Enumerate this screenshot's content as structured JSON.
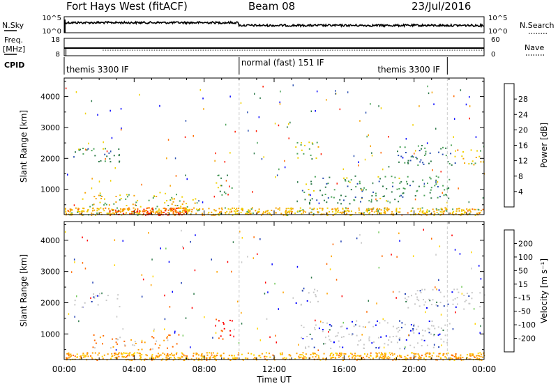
{
  "header": {
    "title": "Fort Hays West (fitACF)",
    "beam": "Beam 08",
    "date": "23/Jul/2016"
  },
  "colors": {
    "power_scale": [
      "#0000ff",
      "#2a4fb0",
      "#2e7a4a",
      "#4ca35a",
      "#f0d000",
      "#f5a200",
      "#ff6a00",
      "#ff1a00"
    ],
    "velocity_scale": [
      "#ff0000",
      "#ff6a00",
      "#ffa300",
      "#ffd400",
      "#c8c8c8",
      "#73c85a",
      "#2e7a4a",
      "#1a3ab0",
      "#0000ff"
    ]
  },
  "chart_data": [
    {
      "type": "line",
      "name": "noise-panel",
      "left_label": "N.Sky",
      "right_label": "N.Search",
      "y_left_ticks": [
        "10^5",
        "10^0"
      ],
      "y_right_ticks": [
        "10^5",
        "10^0"
      ],
      "xlim": [
        0,
        24
      ]
    },
    {
      "type": "line",
      "name": "freq-nave-panel",
      "left_label_1": "Freq.",
      "left_label_2": "[MHz]",
      "right_label": "Nave",
      "y_left_ticks": [
        18,
        8
      ],
      "y_right_ticks": [
        60,
        0
      ],
      "xlim": [
        0,
        24
      ]
    },
    {
      "type": "table",
      "name": "cpid-panel",
      "label": "CPID",
      "segments": [
        {
          "start": 0.0,
          "end": 10.0,
          "text": "themis 3300 IF"
        },
        {
          "start": 10.0,
          "end": 21.9,
          "text": "normal (fast) 151 IF"
        },
        {
          "start": 21.9,
          "end": 24.0,
          "text": "themis 3300 IF"
        }
      ]
    },
    {
      "type": "heatmap",
      "name": "power-panel",
      "ylabel": "Slant Range [km]",
      "yticks": [
        1000,
        2000,
        3000,
        4000
      ],
      "ylim": [
        180,
        4600
      ],
      "colorbar": {
        "label": "Power [dB]",
        "ticks": [
          4,
          8,
          12,
          16,
          20,
          24,
          28
        ],
        "range": [
          0,
          32
        ]
      },
      "echo_regions": [
        {
          "t0": 0.0,
          "t1": 24.0,
          "r0": 180,
          "r1": 420,
          "value": 20,
          "dense": true
        },
        {
          "t0": 2.5,
          "t1": 7.0,
          "r0": 180,
          "r1": 420,
          "value": 26,
          "dense": true
        },
        {
          "t0": 0.5,
          "t1": 3.2,
          "r0": 1850,
          "r1": 2350,
          "value": 12,
          "dense": false
        },
        {
          "t0": 1.0,
          "t1": 7.5,
          "r0": 450,
          "r1": 950,
          "value": 18,
          "dense": false
        },
        {
          "t0": 8.6,
          "t1": 9.6,
          "r0": 800,
          "r1": 1500,
          "value": 14,
          "dense": false
        },
        {
          "t0": 13.2,
          "t1": 14.5,
          "r0": 1950,
          "r1": 2600,
          "value": 16,
          "dense": false
        },
        {
          "t0": 13.5,
          "t1": 22.0,
          "r0": 550,
          "r1": 1450,
          "value": 12,
          "dense": false
        },
        {
          "t0": 19.0,
          "t1": 22.5,
          "r0": 1800,
          "r1": 2450,
          "value": 10,
          "dense": false
        },
        {
          "t0": 22.3,
          "t1": 24.0,
          "r0": 1800,
          "r1": 2400,
          "value": 20,
          "dense": false
        }
      ]
    },
    {
      "type": "heatmap",
      "name": "velocity-panel",
      "ylabel": "Slant Range [km]",
      "yticks": [
        1000,
        2000,
        3000,
        4000
      ],
      "ylim": [
        180,
        4600
      ],
      "xlabel": "Time UT",
      "xticks": [
        "00:00",
        "04:00",
        "08:00",
        "12:00",
        "16:00",
        "20:00",
        "00:00"
      ],
      "xtick_values": [
        0,
        4,
        8,
        12,
        16,
        20,
        24
      ],
      "xlim": [
        0,
        24
      ],
      "colorbar": {
        "label": "Velocity [m s⁻¹]",
        "ticks": [
          "200",
          "100",
          "50",
          "15",
          "-15",
          "-50",
          "-100",
          "-200"
        ]
      },
      "echo_regions": [
        {
          "t0": 0.0,
          "t1": 24.0,
          "r0": 180,
          "r1": 420,
          "value": -50,
          "dense": true
        },
        {
          "t0": 0.5,
          "t1": 3.2,
          "r0": 1850,
          "r1": 2350,
          "value": 0,
          "dense": false
        },
        {
          "t0": 1.5,
          "t1": 7.0,
          "r0": 500,
          "r1": 1000,
          "value": -100,
          "dense": false
        },
        {
          "t0": 8.6,
          "t1": 9.6,
          "r0": 800,
          "r1": 1500,
          "value": -200,
          "dense": false
        },
        {
          "t0": 13.2,
          "t1": 14.5,
          "r0": 1950,
          "r1": 2600,
          "value": 0,
          "dense": false
        },
        {
          "t0": 13.5,
          "t1": 22.0,
          "r0": 550,
          "r1": 1450,
          "value": 0,
          "dense": false
        },
        {
          "t0": 19.0,
          "t1": 22.5,
          "r0": 1800,
          "r1": 2450,
          "value": 0,
          "dense": false
        },
        {
          "t0": 22.3,
          "t1": 24.0,
          "r0": 1800,
          "r1": 2400,
          "value": 0,
          "dense": false
        }
      ]
    }
  ]
}
